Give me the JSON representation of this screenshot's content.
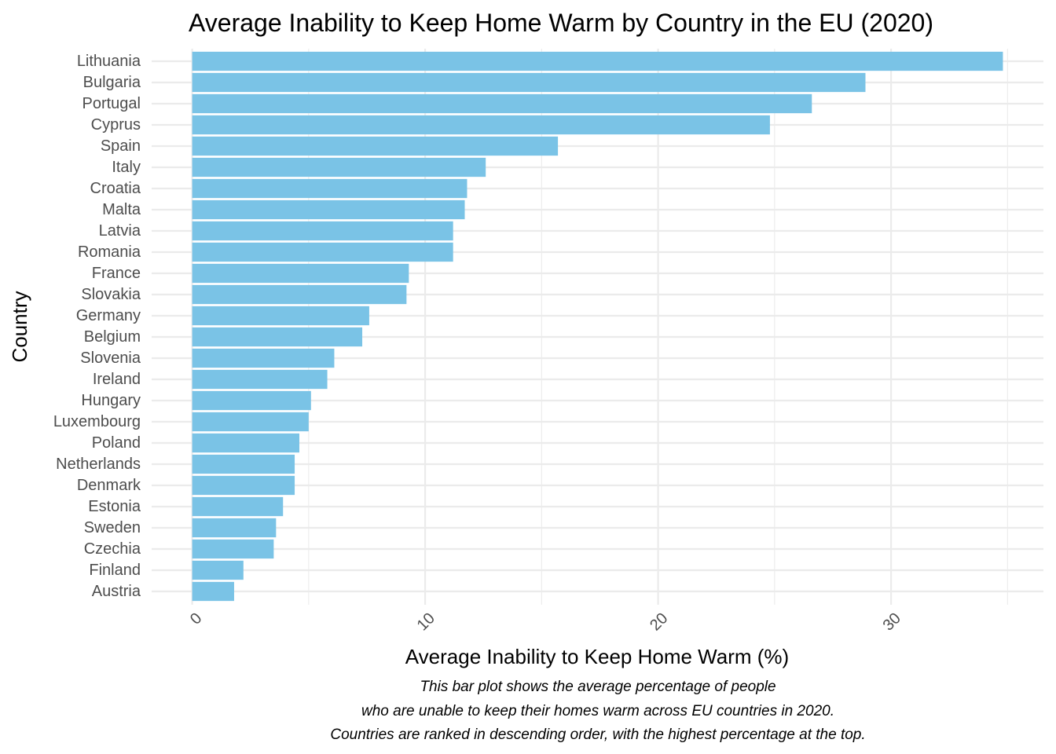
{
  "chart_data": {
    "type": "bar",
    "orientation": "horizontal",
    "title": "Average Inability to Keep Home Warm by Country in the EU (2020)",
    "xlabel": "Average Inability to Keep Home Warm (%)",
    "ylabel": "Country",
    "caption": [
      "This bar plot shows the average percentage of people",
      "who are unable to keep their homes warm across EU countries in 2020.",
      "Countries are ranked in descending order, with the highest percentage at the top."
    ],
    "categories": [
      "Lithuania",
      "Bulgaria",
      "Portugal",
      "Cyprus",
      "Spain",
      "Italy",
      "Croatia",
      "Malta",
      "Latvia",
      "Romania",
      "France",
      "Slovakia",
      "Germany",
      "Belgium",
      "Slovenia",
      "Ireland",
      "Hungary",
      "Luxembourg",
      "Poland",
      "Netherlands",
      "Denmark",
      "Estonia",
      "Sweden",
      "Czechia",
      "Finland",
      "Austria"
    ],
    "values": [
      34.8,
      28.9,
      26.6,
      24.8,
      15.7,
      12.6,
      11.8,
      11.7,
      11.2,
      11.2,
      9.3,
      9.2,
      7.6,
      7.3,
      6.1,
      5.8,
      5.1,
      5.0,
      4.6,
      4.4,
      4.4,
      3.9,
      3.6,
      3.5,
      2.2,
      1.8
    ],
    "xlim": [
      -1.74,
      36.54
    ],
    "xticks": [
      0,
      10,
      20,
      30
    ],
    "xtick_labels": [
      "0",
      "10",
      "20",
      "30"
    ],
    "bar_color": "#7ac3e6",
    "grid": true,
    "legend": "none"
  }
}
